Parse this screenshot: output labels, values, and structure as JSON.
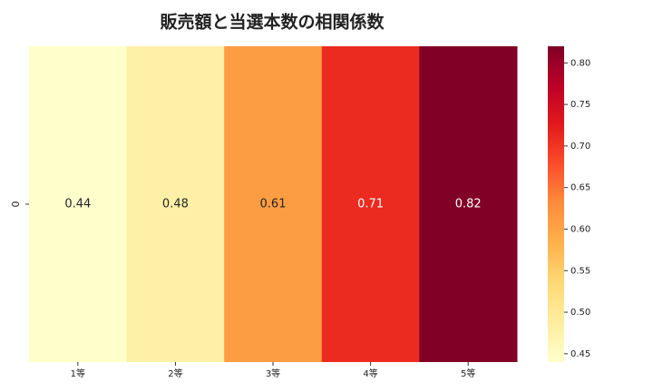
{
  "chart_data": {
    "type": "heatmap",
    "title": "販売額と当選本数の相関係数",
    "categories": [
      "1等",
      "2等",
      "3等",
      "4等",
      "5等"
    ],
    "rows": [
      "0"
    ],
    "values": [
      0.44,
      0.48,
      0.61,
      0.71,
      0.82
    ],
    "colormap": [
      "#ffffcc",
      "#ffeda0",
      "#fed976",
      "#feb24c",
      "#fd8d3c",
      "#fc4e2a",
      "#e31a1c",
      "#bd0026",
      "#800026"
    ],
    "clim": [
      0.44,
      0.82
    ],
    "cticks": [
      {
        "value": 0.45,
        "label": "0.45"
      },
      {
        "value": 0.5,
        "label": "0.50"
      },
      {
        "value": 0.55,
        "label": "0.55"
      },
      {
        "value": 0.6,
        "label": "0.60"
      },
      {
        "value": 0.65,
        "label": "0.65"
      },
      {
        "value": 0.7,
        "label": "0.70"
      },
      {
        "value": 0.75,
        "label": "0.75"
      },
      {
        "value": 0.8,
        "label": "0.80"
      }
    ]
  }
}
